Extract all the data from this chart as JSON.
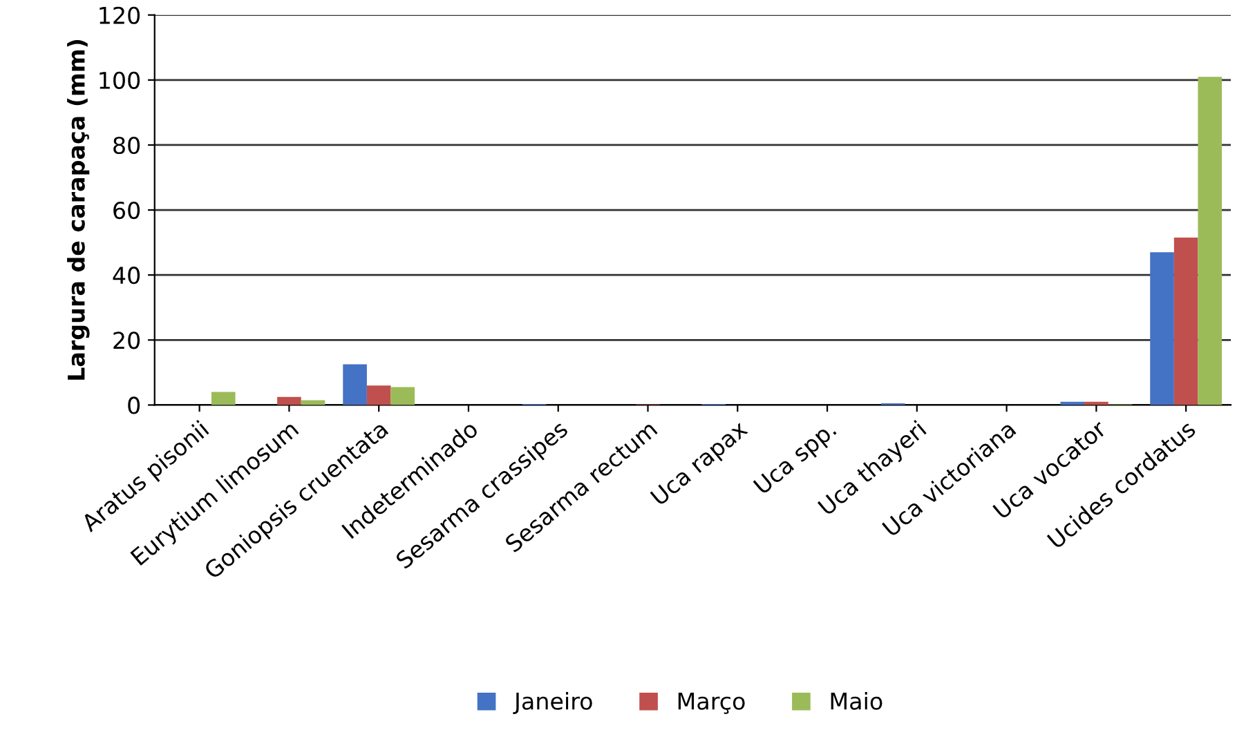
{
  "chart_data": {
    "type": "bar",
    "ylabel": "Largura de carapaça (mm)",
    "categories": [
      "Aratus pisonii",
      "Eurytium limosum",
      "Goniopsis cruentata",
      "Indeterminado",
      "Sesarma crassipes",
      "Sesarma rectum",
      "Uca rapax",
      "Uca spp.",
      "Uca thayeri",
      "Uca victoriana",
      "Uca vocator",
      "Ucides cordatus"
    ],
    "series": [
      {
        "name": "Janeiro",
        "color": "#4472c4",
        "values": [
          0,
          0,
          12.5,
          0,
          0.3,
          0,
          0.3,
          0,
          0.5,
          0,
          1,
          47
        ]
      },
      {
        "name": "Março",
        "color": "#c0504d",
        "values": [
          0,
          2.5,
          6,
          0,
          0,
          0.2,
          0,
          0,
          0,
          0,
          1,
          51.5
        ]
      },
      {
        "name": "Maio",
        "color": "#9bbb59",
        "values": [
          4,
          1.5,
          5.5,
          0,
          0,
          0,
          0,
          0,
          0,
          0,
          0.2,
          101
        ]
      }
    ],
    "ylim": [
      0,
      120
    ],
    "yticks": [
      0,
      20,
      40,
      60,
      80,
      100,
      120
    ],
    "grid": "y",
    "legend": "bottom"
  }
}
